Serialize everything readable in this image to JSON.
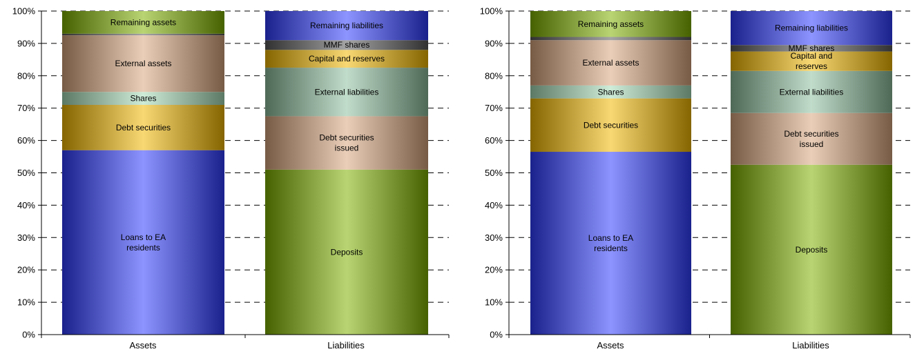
{
  "colors": {
    "blue": "#2f3cff",
    "green": "#7fb200",
    "tan": "#d9a67e",
    "gold": "#f2b800",
    "mint": "#a6dcb8",
    "gray": "#595959",
    "teal": "#8fbf9f"
  },
  "chart_data": [
    {
      "type": "bar",
      "stacked": true,
      "categories": [
        "Assets",
        "Liabilities"
      ],
      "ylim": [
        0,
        100
      ],
      "yticks": [
        "0%",
        "10%",
        "20%",
        "30%",
        "40%",
        "50%",
        "60%",
        "70%",
        "80%",
        "90%",
        "100%"
      ],
      "grid": true,
      "stacks": [
        {
          "segments": [
            {
              "label": "Loans to EA residents",
              "lines": [
                "Loans to EA",
                "residents"
              ],
              "value": 57.0,
              "color": "blue"
            },
            {
              "label": "Debt securities",
              "lines": [
                "Debt securities"
              ],
              "value": 14.0,
              "color": "gold"
            },
            {
              "label": "Shares",
              "lines": [
                "Shares"
              ],
              "value": 4.0,
              "color": "mint"
            },
            {
              "label": "External assets",
              "lines": [
                "External assets"
              ],
              "value": 17.5,
              "color": "tan"
            },
            {
              "label": "",
              "lines": [],
              "value": 0.5,
              "color": "gray"
            },
            {
              "label": "Remaining assets",
              "lines": [
                "Remaining assets"
              ],
              "value": 7.0,
              "color": "green"
            }
          ]
        },
        {
          "segments": [
            {
              "label": "Deposits",
              "lines": [
                "Deposits"
              ],
              "value": 51.0,
              "color": "green"
            },
            {
              "label": "Debt securities issued",
              "lines": [
                "Debt securities",
                "issued"
              ],
              "value": 16.5,
              "color": "tan"
            },
            {
              "label": "External liabilities",
              "lines": [
                "External liabilities"
              ],
              "value": 15.0,
              "color": "teal"
            },
            {
              "label": "Capital and reserves",
              "lines": [
                "Capital and reserves"
              ],
              "value": 5.5,
              "color": "gold"
            },
            {
              "label": "MMF shares",
              "lines": [
                "MMF shares"
              ],
              "value": 3.0,
              "color": "gray"
            },
            {
              "label": "Remaining liabilities",
              "lines": [
                "Remaining liabilities"
              ],
              "value": 9.0,
              "color": "blue"
            }
          ]
        }
      ]
    },
    {
      "type": "bar",
      "stacked": true,
      "categories": [
        "Assets",
        "Liabilities"
      ],
      "ylim": [
        0,
        100
      ],
      "yticks": [
        "0%",
        "10%",
        "20%",
        "30%",
        "40%",
        "50%",
        "60%",
        "70%",
        "80%",
        "90%",
        "100%"
      ],
      "grid": true,
      "stacks": [
        {
          "segments": [
            {
              "label": "Loans to EA residents",
              "lines": [
                "Loans to EA",
                "residents"
              ],
              "value": 56.5,
              "color": "blue"
            },
            {
              "label": "Debt securities",
              "lines": [
                "Debt securities"
              ],
              "value": 16.5,
              "color": "gold"
            },
            {
              "label": "Shares",
              "lines": [
                "Shares"
              ],
              "value": 4.0,
              "color": "mint"
            },
            {
              "label": "External assets",
              "lines": [
                "External assets"
              ],
              "value": 14.0,
              "color": "tan"
            },
            {
              "label": "",
              "lines": [],
              "value": 1.0,
              "color": "gray"
            },
            {
              "label": "Remaining assets",
              "lines": [
                "Remaining assets"
              ],
              "value": 8.0,
              "color": "green"
            }
          ]
        },
        {
          "segments": [
            {
              "label": "Deposits",
              "lines": [
                "Deposits"
              ],
              "value": 52.5,
              "color": "green"
            },
            {
              "label": "Debt securities issued",
              "lines": [
                "Debt securities",
                "issued"
              ],
              "value": 16.0,
              "color": "tan"
            },
            {
              "label": "External liabilities",
              "lines": [
                "External liabilities"
              ],
              "value": 13.0,
              "color": "teal"
            },
            {
              "label": "Capital and reserves",
              "lines": [
                "Capital and",
                "reserves"
              ],
              "value": 6.0,
              "color": "gold"
            },
            {
              "label": "MMF shares",
              "lines": [
                "MMF shares"
              ],
              "value": 2.0,
              "color": "gray"
            },
            {
              "label": "Remaining liabilities",
              "lines": [
                "Remaining liabilities"
              ],
              "value": 10.5,
              "color": "blue"
            }
          ]
        }
      ]
    }
  ]
}
